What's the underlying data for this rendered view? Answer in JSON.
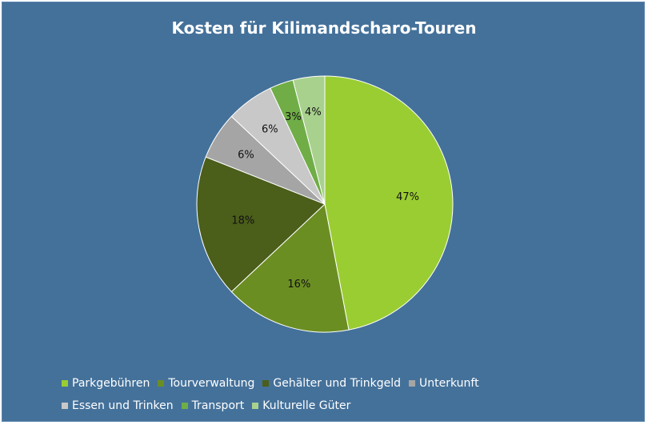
{
  "chart_data": {
    "type": "pie",
    "title": "Kosten für Kilimandscharo-Touren",
    "slices": [
      {
        "name": "Parkgebühren",
        "value": 47,
        "label": "47%",
        "color": "#9acd32"
      },
      {
        "name": "Tourverwaltung",
        "value": 16,
        "label": "16%",
        "color": "#6b8e23"
      },
      {
        "name": "Gehälter und Trinkgeld",
        "value": 18,
        "label": "18%",
        "color": "#4b5e1a"
      },
      {
        "name": "Unterkunft",
        "value": 6,
        "label": "6%",
        "color": "#a5a5a5"
      },
      {
        "name": "Essen und Trinken",
        "value": 6,
        "label": "6%",
        "color": "#c8c8c8"
      },
      {
        "name": "Transport",
        "value": 3,
        "label": "3%",
        "color": "#70ad47"
      },
      {
        "name": "Kulturelle Güter",
        "value": 4,
        "label": "4%",
        "color": "#a9d18e"
      }
    ],
    "legend_position": "bottom"
  }
}
